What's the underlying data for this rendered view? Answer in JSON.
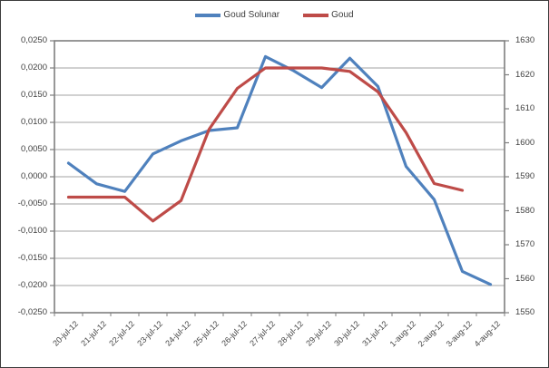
{
  "window": {
    "background": "#ffffff",
    "border_color": "#3c3c3c"
  },
  "colors": {
    "series_blue": "#4F81BD",
    "series_red": "#BE4B48",
    "gridline": "#a3a3a3",
    "axis_line": "#7f7f7f",
    "tick_text": "#404040"
  },
  "legend": {
    "items": [
      {
        "label": "Goud Solunar",
        "color": "#4F81BD"
      },
      {
        "label": "Goud",
        "color": "#BE4B48"
      }
    ]
  },
  "chart_data": {
    "type": "line",
    "title": "",
    "xlabel": "",
    "ylabel_left": "",
    "ylabel_right": "",
    "grid": true,
    "legend_position": "top",
    "categories": [
      "20-jul-12",
      "21-jul-12",
      "22-jul-12",
      "23-jul-12",
      "24-jul-12",
      "25-jul-12",
      "26-jul-12",
      "27-jul-12",
      "28-jul-12",
      "29-jul-12",
      "30-jul-12",
      "31-jul-12",
      "1-aug-12",
      "2-aug-12",
      "3-aug-12",
      "4-aug-12"
    ],
    "series": [
      {
        "name": "Goud Solunar",
        "axis": "left",
        "color": "#4F81BD",
        "values": [
          0.0025,
          -0.0013,
          -0.0027,
          0.0042,
          0.0066,
          0.0085,
          0.009,
          0.0221,
          0.0195,
          0.0164,
          0.0218,
          0.0166,
          0.0019,
          -0.0042,
          -0.0174,
          -0.0198
        ]
      },
      {
        "name": "Goud",
        "axis": "right",
        "color": "#BE4B48",
        "values": [
          1584,
          1584,
          1584,
          1577,
          1583,
          1604,
          1616,
          1622,
          1622,
          1622,
          1621,
          1615,
          1603,
          1588,
          1586,
          null
        ]
      }
    ],
    "left_axis": {
      "min": -0.025,
      "max": 0.025,
      "step": 0.005,
      "tick_labels": [
        "0,0250",
        "0,0200",
        "0,0150",
        "0,0100",
        "0,0050",
        "0,0000",
        "-0,0050",
        "-0,0100",
        "-0,0150",
        "-0,0200",
        "-0,0250"
      ]
    },
    "right_axis": {
      "min": 1550,
      "max": 1630,
      "step": 10,
      "tick_labels": [
        "1630",
        "1620",
        "1610",
        "1600",
        "1590",
        "1580",
        "1570",
        "1560",
        "1550"
      ]
    }
  }
}
